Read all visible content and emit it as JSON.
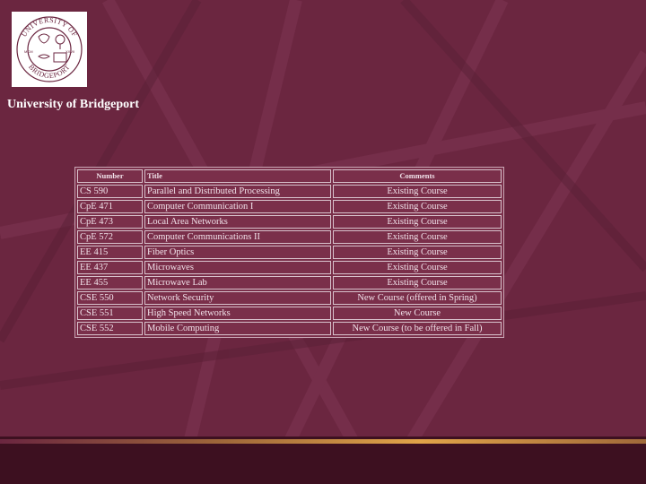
{
  "logo": {
    "arc_top": "UNIVERSITY OF",
    "arc_bottom": "BRIDGEPORT",
    "year_left": "MCM",
    "year_right": "XXVII"
  },
  "org_name": "University of Bridgeport",
  "table": {
    "headers": [
      "Number",
      "Title",
      "Comments"
    ],
    "rows": [
      {
        "number": "CS 590",
        "title": "Parallel and Distributed Processing",
        "comment": "Existing Course"
      },
      {
        "number": "CpE 471",
        "title": "Computer Communication I",
        "comment": "Existing Course"
      },
      {
        "number": "CpE 473",
        "title": "Local Area Networks",
        "comment": "Existing Course"
      },
      {
        "number": "CpE 572",
        "title": "Computer Communications II",
        "comment": "Existing Course"
      },
      {
        "number": "EE 415",
        "title": "Fiber Optics",
        "comment": "Existing Course"
      },
      {
        "number": "EE 437",
        "title": "Microwaves",
        "comment": "Existing Course"
      },
      {
        "number": "EE 455",
        "title": "Microwave Lab",
        "comment": "Existing Course"
      },
      {
        "number": "CSE 550",
        "title": "Network Security",
        "comment": "New Course (offered in Spring)"
      },
      {
        "number": "CSE 551",
        "title": "High Speed Networks",
        "comment": "New Course"
      },
      {
        "number": "CSE 552",
        "title": "Mobile Computing",
        "comment": "New Course (to be offered in Fall)"
      }
    ]
  },
  "colors": {
    "background": "#6b2640",
    "logo_bg": "#ffffff",
    "logo_ink": "#6b2640",
    "text": "#f1e2ea",
    "accent_stripe": "#e1a449"
  }
}
